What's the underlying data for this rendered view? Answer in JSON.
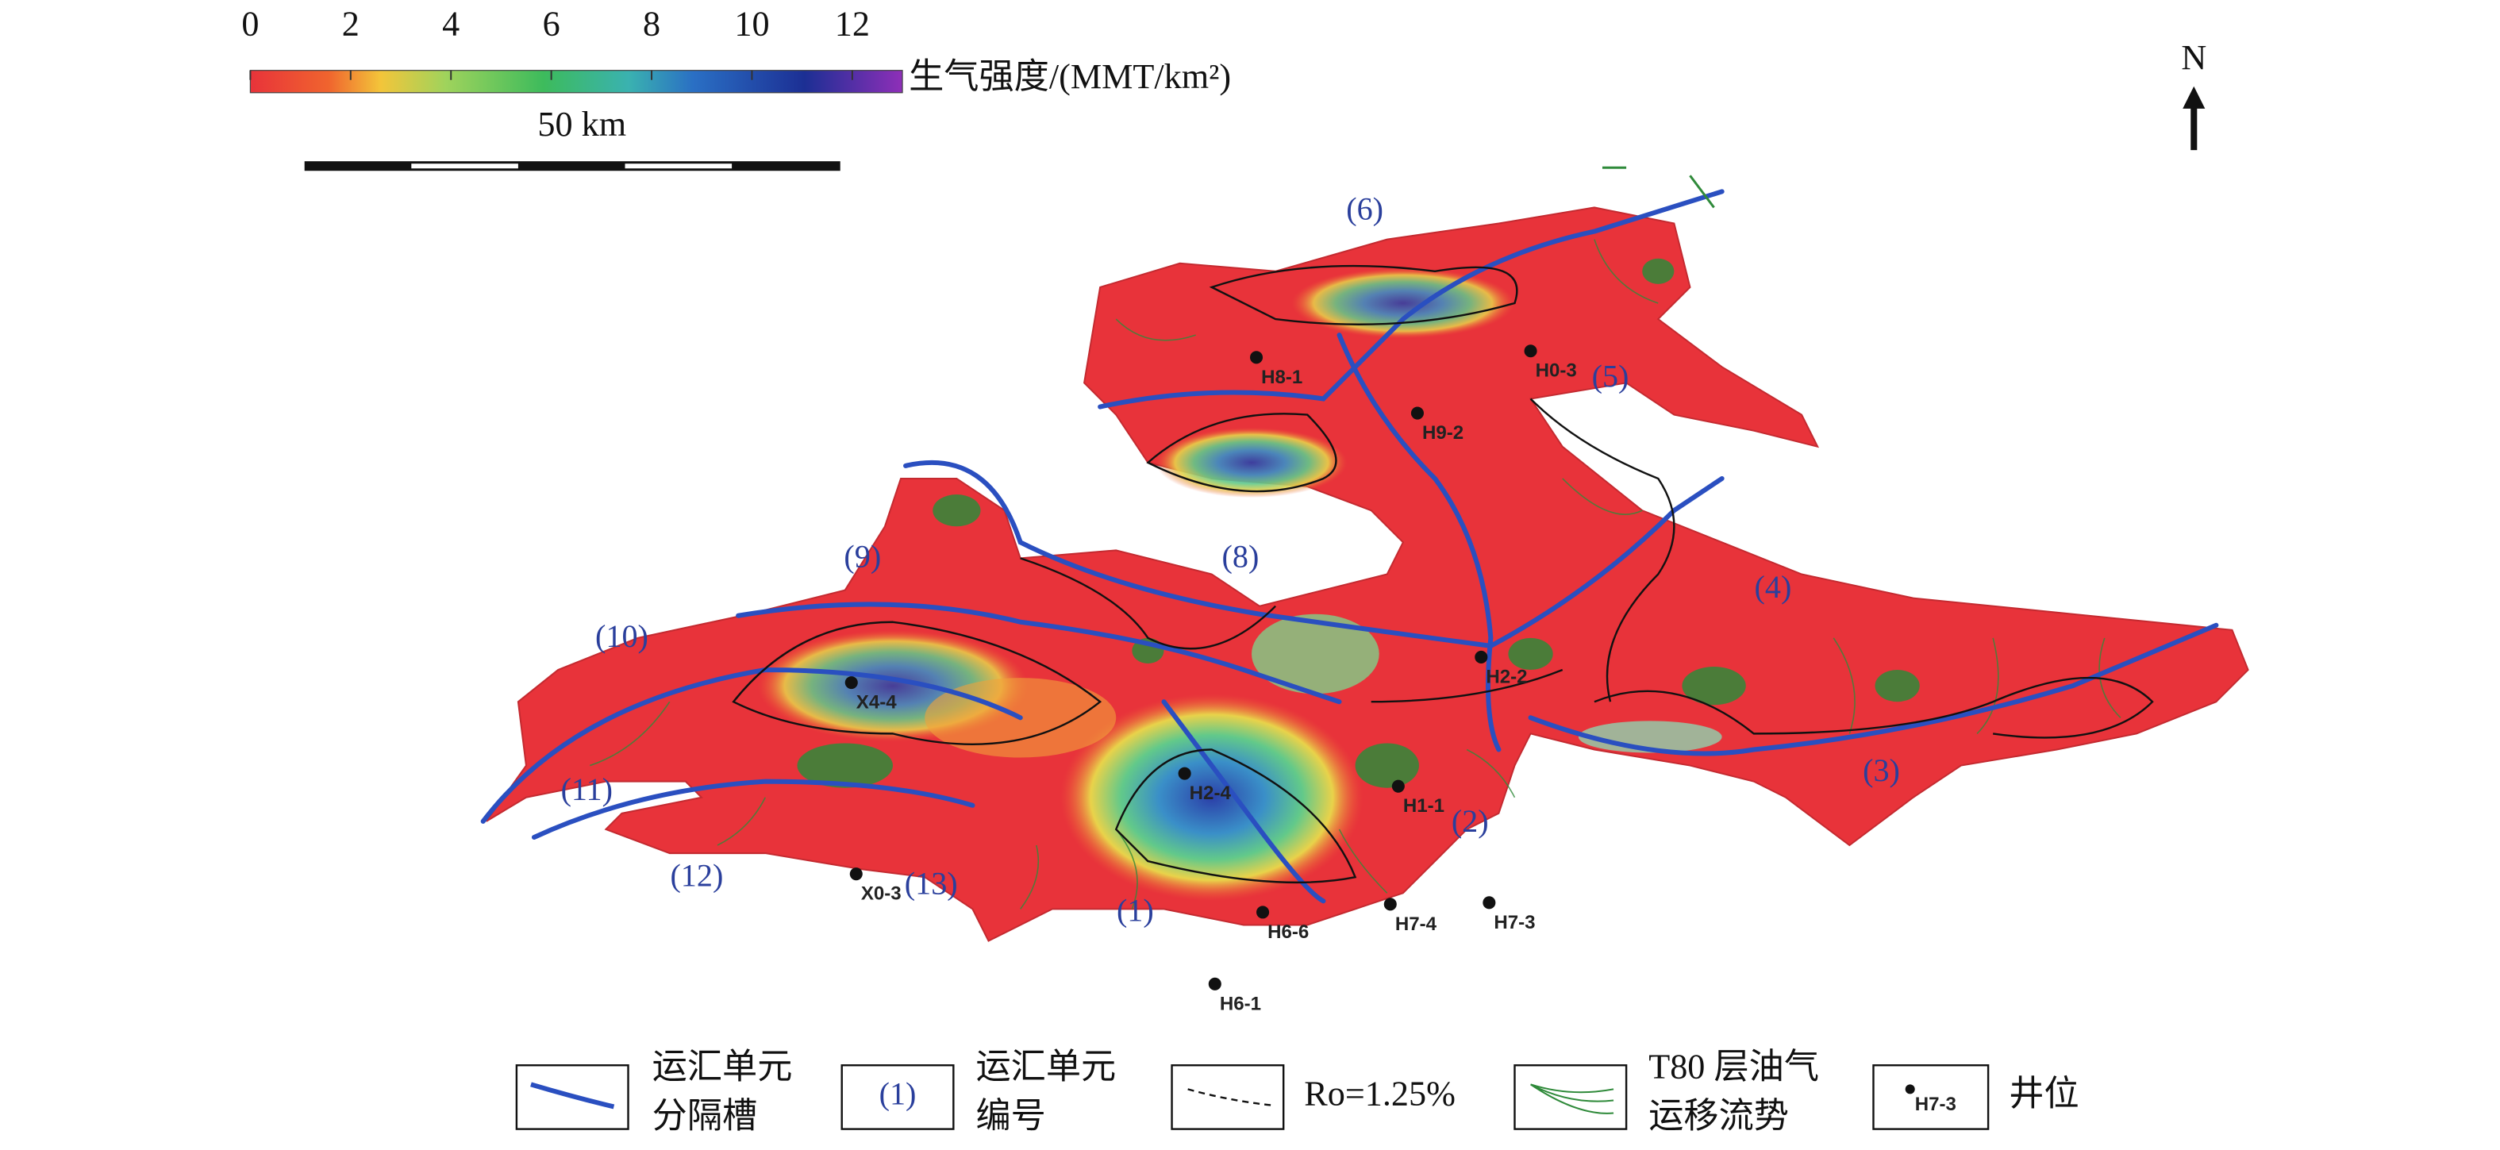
{
  "colorbar": {
    "range": [
      0,
      13
    ],
    "ticks": [
      0,
      2,
      4,
      6,
      8,
      10,
      12
    ],
    "label": "生气强度/(MMT/km²)"
  },
  "scale_bar": {
    "label": "50 km"
  },
  "north": "N",
  "units": [
    "(1)",
    "(2)",
    "(3)",
    "(4)",
    "(5)",
    "(6)",
    "(8)",
    "(9)",
    "(10)",
    "(11)",
    "(12)",
    "(13)"
  ],
  "wells": [
    "H8-1",
    "H0-3",
    "H9-2",
    "H2-2",
    "X4-4",
    "H2-4",
    "H1-1",
    "X0-3",
    "H6-6",
    "H7-4",
    "H7-3",
    "H6-1"
  ],
  "legend": [
    {
      "lines": [
        "运汇单元",
        "分隔槽"
      ]
    },
    {
      "sample": "(1)",
      "lines": [
        "运汇单元",
        "编号"
      ]
    },
    {
      "lines": [
        "Ro=1.25%"
      ]
    },
    {
      "lines": [
        "T80 层油气",
        "运移流势"
      ]
    },
    {
      "sample": "H7-3",
      "lines": [
        "井位"
      ]
    }
  ]
}
